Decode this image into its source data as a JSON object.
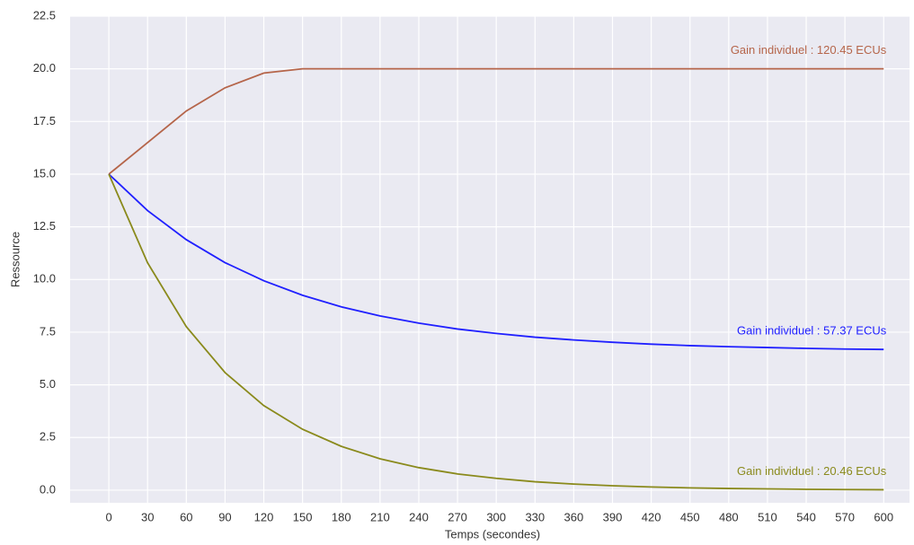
{
  "chart_data": {
    "type": "line",
    "xlabel": "Temps (secondes)",
    "ylabel": "Ressource",
    "x": [
      0,
      30,
      60,
      90,
      120,
      150,
      180,
      210,
      240,
      270,
      300,
      330,
      360,
      390,
      420,
      450,
      480,
      510,
      540,
      570,
      600
    ],
    "series": [
      {
        "name": "Gain individuel : 120.45 ECUs",
        "color": "#b5654a",
        "values": [
          15.0,
          16.5,
          18.0,
          19.1,
          19.8,
          20.0,
          20.0,
          20.0,
          20.0,
          20.0,
          20.0,
          20.0,
          20.0,
          20.0,
          20.0,
          20.0,
          20.0,
          20.0,
          20.0,
          20.0,
          20.0
        ]
      },
      {
        "name": "Gain individuel : 57.37 ECUs",
        "color": "#2020ff",
        "values": [
          15.0,
          13.27,
          11.89,
          10.8,
          9.94,
          9.25,
          8.7,
          8.27,
          7.93,
          7.65,
          7.44,
          7.26,
          7.13,
          7.02,
          6.93,
          6.86,
          6.81,
          6.77,
          6.73,
          6.7,
          6.68
        ]
      },
      {
        "name": "Gain individuel : 20.46 ECUs",
        "color": "#8a8a1c",
        "values": [
          15.0,
          10.79,
          7.76,
          5.58,
          4.01,
          2.89,
          2.08,
          1.49,
          1.07,
          0.77,
          0.56,
          0.4,
          0.29,
          0.21,
          0.15,
          0.11,
          0.08,
          0.06,
          0.04,
          0.03,
          0.02
        ]
      }
    ],
    "xlim": [
      -30,
      620
    ],
    "ylim": [
      -0.6,
      22.5
    ],
    "xticks": [
      0,
      30,
      60,
      90,
      120,
      150,
      180,
      210,
      240,
      270,
      300,
      330,
      360,
      390,
      420,
      450,
      480,
      510,
      540,
      570,
      600
    ],
    "yticks": [
      {
        "value": 0,
        "label": "0.0"
      },
      {
        "value": 2.5,
        "label": "2.5"
      },
      {
        "value": 5,
        "label": "5.0"
      },
      {
        "value": 7.5,
        "label": "7.5"
      },
      {
        "value": 10,
        "label": "10.0"
      },
      {
        "value": 12.5,
        "label": "12.5"
      },
      {
        "value": 15,
        "label": "15.0"
      },
      {
        "value": 17.5,
        "label": "17.5"
      },
      {
        "value": 20,
        "label": "20.0"
      },
      {
        "value": 22.5,
        "label": "22.5"
      }
    ],
    "grid": true
  }
}
